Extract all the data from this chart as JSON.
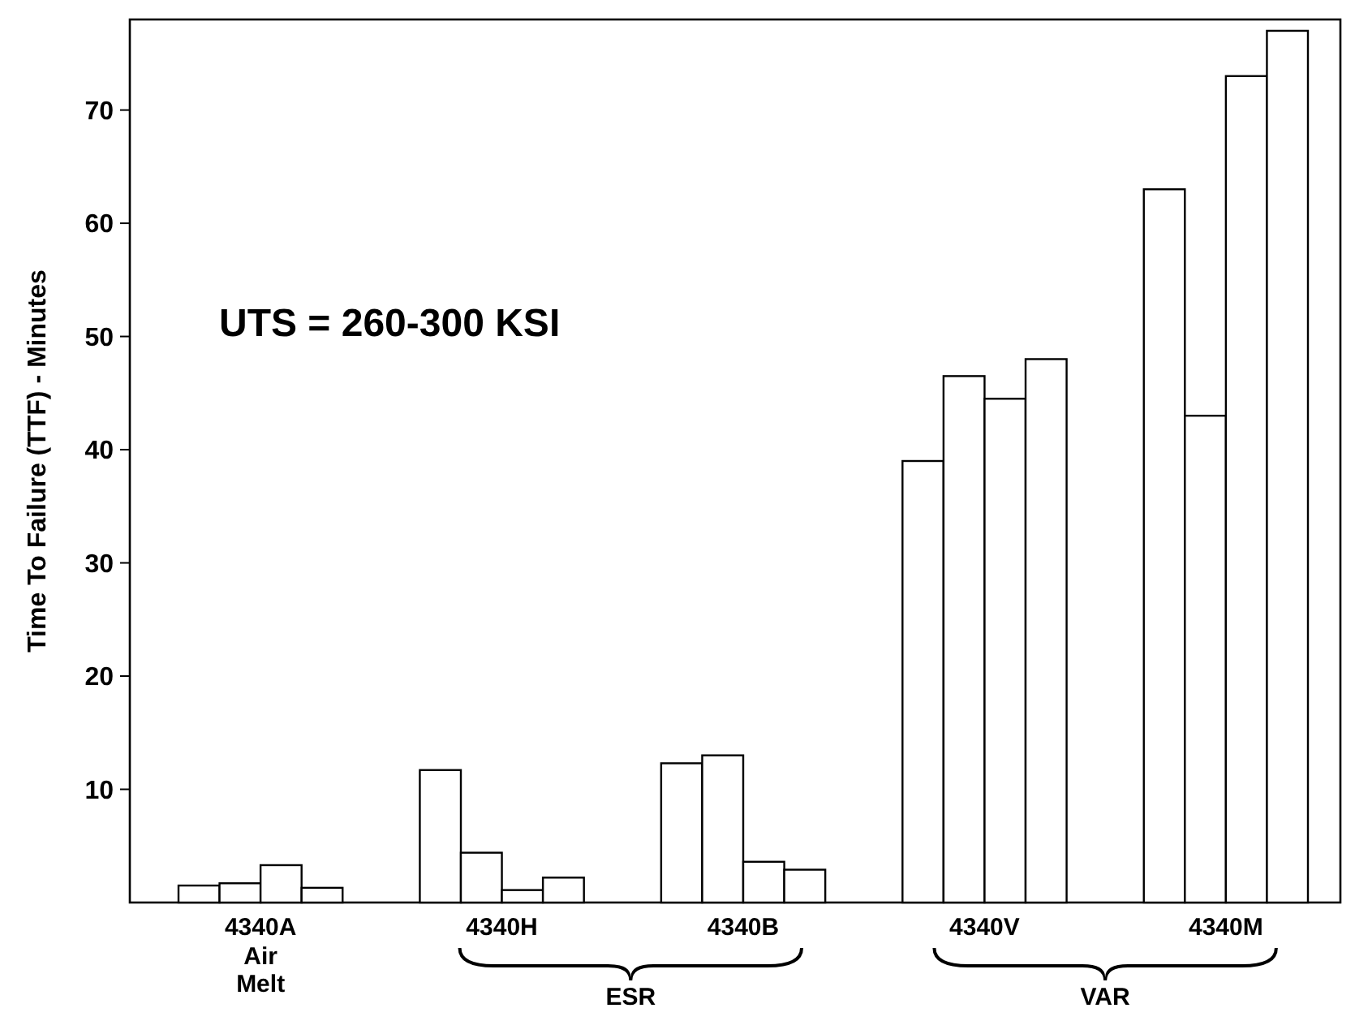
{
  "chart_data": {
    "type": "bar",
    "ylabel": "Time To Failure (TTF) - Minutes",
    "categories": [
      "4340A",
      "4340H",
      "4340B",
      "4340V",
      "4340M"
    ],
    "series": [
      {
        "color": "#ffffff",
        "values": [
          1.5,
          11.7,
          12.3,
          39,
          63
        ]
      },
      {
        "color": "#ffffff",
        "values": [
          1.7,
          4.4,
          13,
          46.5,
          43
        ]
      },
      {
        "color": "#ffffff",
        "values": [
          3.3,
          1.1,
          3.6,
          44.5,
          73
        ]
      },
      {
        "color": "#ffffff",
        "values": [
          1.3,
          2.2,
          2.9,
          48,
          77
        ]
      }
    ],
    "ylim": [
      0,
      78
    ],
    "yticks": [
      10,
      20,
      30,
      40,
      50,
      60,
      70
    ],
    "grid": false,
    "annotations": [
      "UTS  =  260-300 KSI",
      "Air Melt",
      "ESR",
      "VAR"
    ]
  }
}
